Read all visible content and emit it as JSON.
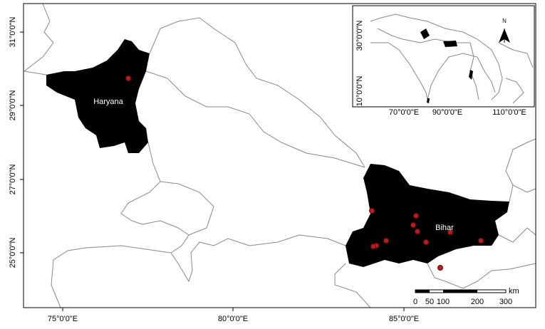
{
  "map": {
    "lon_labels": [
      "75°0'0\"E",
      "80°0'0\"E",
      "85°0'0\"E"
    ],
    "lat_labels": [
      "31°0'0\"N",
      "29°0'0\"N",
      "27°0'0\"N",
      "25°0'0\"N"
    ],
    "regions": [
      "Haryana",
      "Bihar"
    ],
    "inset": {
      "lon_labels": [
        "70°0'0\"E",
        "90°0'0\"E",
        "110°0'0\"E"
      ],
      "lat_labels": [
        "30°0'0\"N",
        "10°0'0\"N"
      ],
      "north": "N"
    },
    "scale": {
      "labels": [
        "0",
        "50",
        "100",
        "200",
        "300"
      ],
      "unit": "km"
    }
  }
}
